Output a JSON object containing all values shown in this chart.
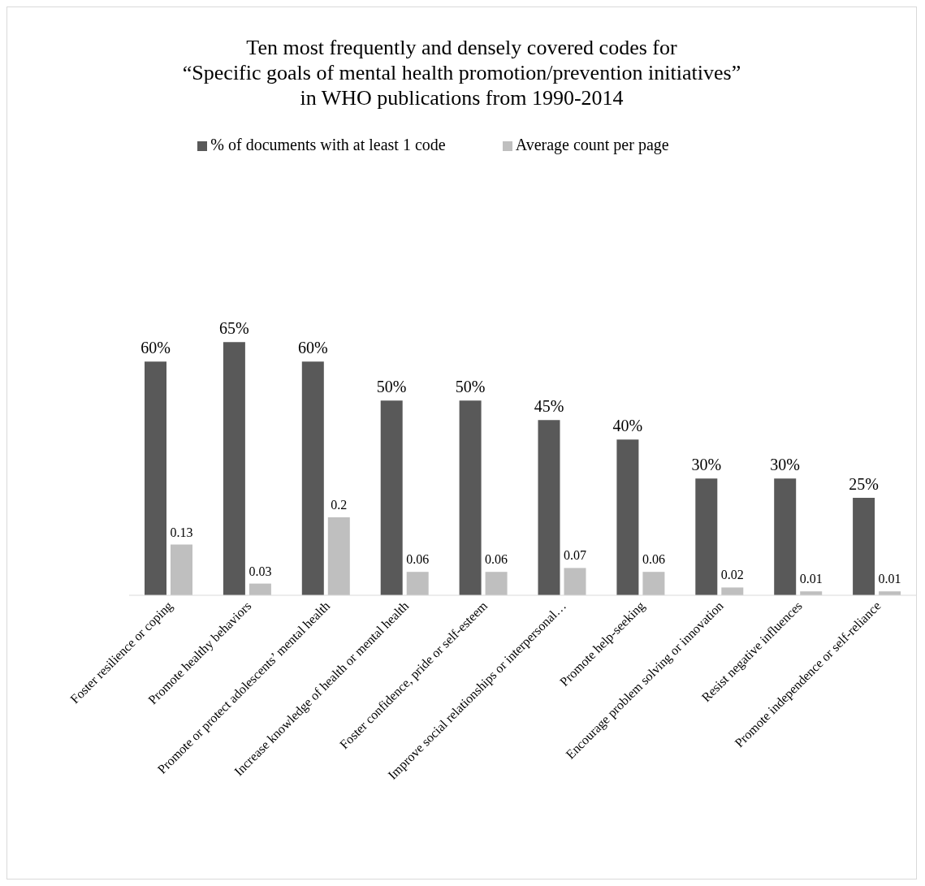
{
  "chart_data": {
    "type": "bar",
    "title": "Ten most frequently and densely covered codes for\n“Specific goals of mental health promotion/prevention initiatives”\nin WHO publications from 1990-2014",
    "categories": [
      "Foster resilience or coping",
      "Promote healthy behaviors",
      "Promote or protect adolescents’ mental health",
      "Increase knowledge of health or mental health",
      "Foster confidence, pride or self-esteem",
      "Improve social relationships or interpersonal…",
      "Promote help-seeking",
      "Encourage problem solving or innovation",
      "Resist negative influences",
      "Promote independence or self-reliance"
    ],
    "series": [
      {
        "name": "% of documents with at least 1 code",
        "color": "#595959",
        "values": [
          60,
          65,
          60,
          50,
          50,
          45,
          40,
          30,
          30,
          25
        ],
        "value_labels": [
          "60%",
          "65%",
          "60%",
          "50%",
          "50%",
          "45%",
          "40%",
          "30%",
          "30%",
          "25%"
        ]
      },
      {
        "name": "Average count per page",
        "color": "#bfbfbf",
        "axis": "y2",
        "values": [
          0.13,
          0.03,
          0.2,
          0.06,
          0.06,
          0.07,
          0.06,
          0.02,
          0.01,
          0.01
        ],
        "value_labels": [
          "0.13",
          "0.03",
          "0.2",
          "0.06",
          "0.06",
          "0.07",
          "0.06",
          "0.02",
          "0.01",
          "0.01"
        ]
      }
    ],
    "tick_labels": "x",
    "legend": "top"
  }
}
